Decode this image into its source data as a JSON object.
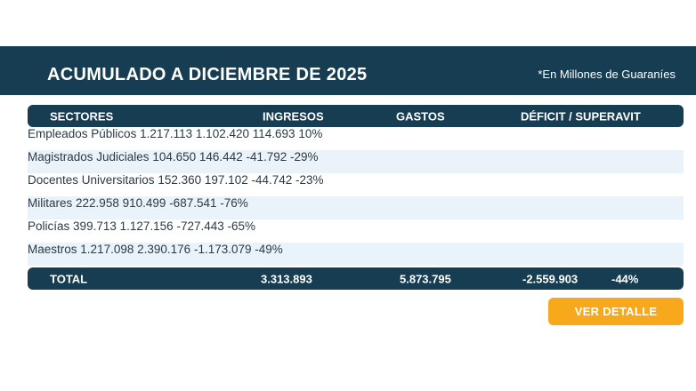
{
  "banner": {
    "title": "ACUMULADO A DICIEMBRE DE 2025",
    "note": "*En Millones de Guaraníes"
  },
  "table": {
    "headers": [
      "SECTORES",
      "INGRESOS",
      "GASTOS",
      "DÉFICIT / SUPERAVIT"
    ],
    "rows": [
      {
        "sector": "Empleados Públicos",
        "ingresos": "1.217.113",
        "gastos": "1.102.420",
        "deficit": "114.693",
        "pct": "10%"
      },
      {
        "sector": "Magistrados Judiciales",
        "ingresos": "104.650",
        "gastos": "146.442",
        "deficit": "-41.792",
        "pct": "-29%"
      },
      {
        "sector": "Docentes Universitarios",
        "ingresos": "152.360",
        "gastos": "197.102",
        "deficit": "-44.742",
        "pct": "-23%"
      },
      {
        "sector": "Militares",
        "ingresos": "222.958",
        "gastos": "910.499",
        "deficit": "-687.541",
        "pct": "-76%"
      },
      {
        "sector": "Policías",
        "ingresos": "399.713",
        "gastos": "1.127.156",
        "deficit": "-727.443",
        "pct": "-65%"
      },
      {
        "sector": "Maestros",
        "ingresos": "1.217.098",
        "gastos": "2.390.176",
        "deficit": "-1.173.079",
        "pct": "-49%"
      }
    ],
    "total": {
      "label": "TOTAL",
      "ingresos": "3.313.893",
      "gastos": "5.873.795",
      "deficit": "-2.559.903",
      "pct": "-44%"
    }
  },
  "button": {
    "label": "VER DETALLE"
  },
  "colors": {
    "navy": "#173d52",
    "row_alt": "#eaf3fa",
    "accent": "#f7a81b"
  }
}
